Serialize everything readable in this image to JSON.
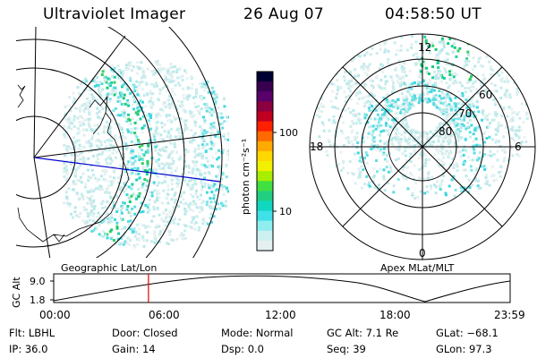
{
  "header": {
    "title": "Ultraviolet Imager",
    "date": "26 Aug 07",
    "time": "04:58:50 UT"
  },
  "colorbar": {
    "unit_label": "photon cm⁻²s⁻¹",
    "ticks": [
      "100",
      "10"
    ],
    "colors": [
      "#000033",
      "#3a0050",
      "#5a006a",
      "#8a0040",
      "#c00020",
      "#ff2000",
      "#ff6a00",
      "#ffaa00",
      "#ffd800",
      "#f0f000",
      "#a8ee00",
      "#40e040",
      "#20d080",
      "#10d8c0",
      "#40e0e8",
      "#90eef0",
      "#cceff0",
      "#e6f0f0"
    ]
  },
  "polar": {
    "mlt_labels": {
      "top": "12",
      "left": "18",
      "right": "6",
      "bottom": "0"
    },
    "lat_labels": [
      "60",
      "70",
      "80"
    ]
  },
  "map_labels": {
    "left": "Geographic Lat/Lon",
    "right": "Apex MLat/MLT"
  },
  "altitude_plot": {
    "axis_label": "GC Alt",
    "ticks": [
      "9.0",
      "1.8"
    ],
    "time_ticks": [
      "00:00",
      "06:00",
      "12:00",
      "18:00",
      "23:59"
    ],
    "current_fraction": 0.2076
  },
  "info": {
    "row1": [
      {
        "key": "Flt:",
        "val": "LBHL"
      },
      {
        "key": "Door:",
        "val": "Closed"
      },
      {
        "key": "Mode:",
        "val": "Normal"
      },
      {
        "key": "GC Alt:",
        "val": "7.1 Re"
      },
      {
        "key": "GLat:",
        "val": "−68.1"
      }
    ],
    "row2": [
      {
        "key": "IP:",
        "val": "36.0"
      },
      {
        "key": "Gain:",
        "val": "14"
      },
      {
        "key": "Dsp:",
        "val": "0.0"
      },
      {
        "key": "Seq:",
        "val": "39"
      },
      {
        "key": "GLon:",
        "val": "97.3"
      }
    ]
  }
}
